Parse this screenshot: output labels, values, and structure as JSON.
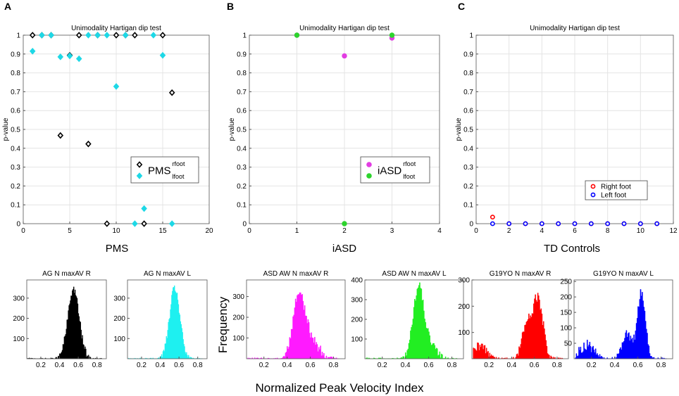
{
  "chart_data": [
    {
      "type": "scatter",
      "panel": "A",
      "title": "Unimodality Hartigan dip test",
      "ylabel": "p-value",
      "xlabel": "PMS",
      "xlim": [
        0,
        20
      ],
      "ylim": [
        0,
        1
      ],
      "xticks": [
        0,
        5,
        10,
        15,
        20
      ],
      "yticks": [
        0,
        0.1,
        0.2,
        0.3,
        0.4,
        0.5,
        0.6,
        0.7,
        0.8,
        0.9,
        1
      ],
      "grid": true,
      "legend": {
        "main": "PMS",
        "subs": [
          "rfoot",
          "lfoot"
        ],
        "position": "bottom-right",
        "style": "subscript"
      },
      "series": [
        {
          "name": "rfoot",
          "color": "#000000",
          "marker": "diamond",
          "x": [
            1,
            2,
            3,
            4,
            5,
            6,
            7,
            8,
            9,
            10,
            11,
            12,
            13,
            15,
            16
          ],
          "y": [
            1,
            1,
            1,
            0.468,
            0.893,
            1,
            0.423,
            1,
            0,
            1,
            1,
            1,
            0,
            1,
            0.695
          ]
        },
        {
          "name": "lfoot",
          "color": "#1ed8e6",
          "marker": "diamond",
          "x": [
            1,
            2,
            3,
            4,
            5,
            6,
            7,
            8,
            9,
            10,
            11,
            12,
            13,
            14,
            15,
            16
          ],
          "y": [
            0.915,
            1,
            1,
            0.885,
            0.89,
            0.875,
            1,
            1,
            1,
            0.728,
            1,
            0,
            0.08,
            1,
            0.893,
            0
          ]
        }
      ]
    },
    {
      "type": "scatter",
      "panel": "B",
      "title": "Unimodality Hartigan dip test",
      "ylabel": "p-value",
      "xlabel": "iASD",
      "xlim": [
        0,
        4
      ],
      "ylim": [
        0,
        1
      ],
      "xticks": [
        0,
        1,
        2,
        3,
        4
      ],
      "yticks": [
        0,
        0.1,
        0.2,
        0.3,
        0.4,
        0.5,
        0.6,
        0.7,
        0.8,
        0.9,
        1
      ],
      "grid": true,
      "legend": {
        "main": "iASD",
        "subs": [
          "rfoot",
          "lfoot"
        ],
        "position": "bottom-right",
        "style": "subscript"
      },
      "series": [
        {
          "name": "rfoot",
          "color": "#e23de2",
          "marker": "circle",
          "x": [
            1,
            2,
            3
          ],
          "y": [
            1,
            0.89,
            0.985
          ]
        },
        {
          "name": "lfoot",
          "color": "#2dd42d",
          "marker": "circle",
          "x": [
            1,
            2,
            3
          ],
          "y": [
            1,
            0,
            1
          ]
        }
      ]
    },
    {
      "type": "scatter",
      "panel": "C",
      "title": "Unimodality Hartigan dip test",
      "ylabel": "p-value",
      "xlabel": "TD Controls",
      "xlim": [
        0,
        12
      ],
      "ylim": [
        0,
        1
      ],
      "xticks": [
        0,
        2,
        4,
        6,
        8,
        10,
        12
      ],
      "yticks": [
        0,
        0.1,
        0.2,
        0.3,
        0.4,
        0.5,
        0.6,
        0.7,
        0.8,
        0.9,
        1
      ],
      "grid": true,
      "legend": {
        "items": [
          "Right foot",
          "Left foot"
        ],
        "position": "bottom-right",
        "style": "plain"
      },
      "series": [
        {
          "name": "Right foot",
          "color": "#ff0000",
          "marker": "ring",
          "x": [
            1,
            2,
            3,
            4,
            5,
            6,
            7,
            8,
            9,
            10,
            11
          ],
          "y": [
            0.035,
            0,
            0,
            0,
            0,
            0,
            0,
            0,
            0,
            0,
            0
          ]
        },
        {
          "name": "Left foot",
          "color": "#0000ff",
          "marker": "ring",
          "x": [
            1,
            2,
            3,
            4,
            5,
            6,
            7,
            8,
            9,
            10,
            11
          ],
          "y": [
            0,
            0,
            0,
            0,
            0,
            0,
            0,
            0,
            0,
            0,
            0
          ]
        }
      ]
    },
    {
      "type": "bar",
      "subtype": "histogram",
      "panel": "A",
      "title": "AG N maxAV R",
      "color": "#000000",
      "xlim": [
        0.05,
        0.9
      ],
      "ylim": [
        0,
        390
      ],
      "xticks": [
        0.2,
        0.4,
        0.6,
        0.8
      ],
      "yticks": [
        100,
        200,
        300
      ],
      "peaks": [
        {
          "mu": 0.55,
          "sd": 0.06,
          "h": 345
        }
      ],
      "noise": 20
    },
    {
      "type": "bar",
      "subtype": "histogram",
      "panel": "A",
      "title": "AG N maxAV L",
      "color": "#1ef0f0",
      "xlim": [
        0.05,
        0.9
      ],
      "ylim": [
        0,
        390
      ],
      "xticks": [
        0.2,
        0.4,
        0.6,
        0.8
      ],
      "yticks": [
        100,
        200,
        300
      ],
      "peaks": [
        {
          "mu": 0.555,
          "sd": 0.055,
          "h": 350
        }
      ],
      "noise": 20
    },
    {
      "type": "bar",
      "subtype": "histogram",
      "panel": "B",
      "title": "ASD AW N maxAV R",
      "color": "#ff1aff",
      "xlim": [
        0.05,
        0.9
      ],
      "ylim": [
        0,
        380
      ],
      "xticks": [
        0.2,
        0.4,
        0.6,
        0.8
      ],
      "yticks": [
        100,
        200,
        300
      ],
      "peaks": [
        {
          "mu": 0.5,
          "sd": 0.05,
          "h": 290
        },
        {
          "mu": 0.6,
          "sd": 0.07,
          "h": 90
        }
      ],
      "noise": 25
    },
    {
      "type": "bar",
      "subtype": "histogram",
      "panel": "B",
      "title": "ASD AW N maxAV L",
      "color": "#22ee22",
      "xlim": [
        0.05,
        0.9
      ],
      "ylim": [
        0,
        400
      ],
      "xticks": [
        0.2,
        0.4,
        0.6,
        0.8
      ],
      "yticks": [
        100,
        200,
        300,
        400
      ],
      "peaks": [
        {
          "mu": 0.51,
          "sd": 0.045,
          "h": 320
        },
        {
          "mu": 0.58,
          "sd": 0.07,
          "h": 80
        }
      ],
      "noise": 25
    },
    {
      "type": "bar",
      "subtype": "histogram",
      "panel": "C",
      "title": "G19YO N maxAV R",
      "color": "#ff0000",
      "xlim": [
        0.05,
        0.9
      ],
      "ylim": [
        0,
        300
      ],
      "xticks": [
        0.2,
        0.4,
        0.6,
        0.8
      ],
      "yticks": [
        100,
        200,
        300
      ],
      "peaks": [
        {
          "mu": 0.13,
          "sd": 0.06,
          "h": 45
        },
        {
          "mu": 0.53,
          "sd": 0.04,
          "h": 120
        },
        {
          "mu": 0.63,
          "sd": 0.045,
          "h": 230
        }
      ],
      "noise": 22
    },
    {
      "type": "bar",
      "subtype": "histogram",
      "panel": "C",
      "title": "G19YO N maxAV L",
      "color": "#0000ff",
      "xlim": [
        0.05,
        0.9
      ],
      "ylim": [
        0,
        255
      ],
      "xticks": [
        0.2,
        0.4,
        0.6,
        0.8
      ],
      "yticks": [
        50,
        100,
        150,
        200,
        250
      ],
      "peaks": [
        {
          "mu": 0.16,
          "sd": 0.06,
          "h": 45
        },
        {
          "mu": 0.5,
          "sd": 0.04,
          "h": 80
        },
        {
          "mu": 0.63,
          "sd": 0.035,
          "h": 215
        }
      ],
      "noise": 18
    }
  ],
  "labels": {
    "panel_a": "A",
    "panel_b": "B",
    "panel_c": "C",
    "frequency": "Frequency",
    "common_xlabel": "Normalized Peak Velocity Index"
  }
}
